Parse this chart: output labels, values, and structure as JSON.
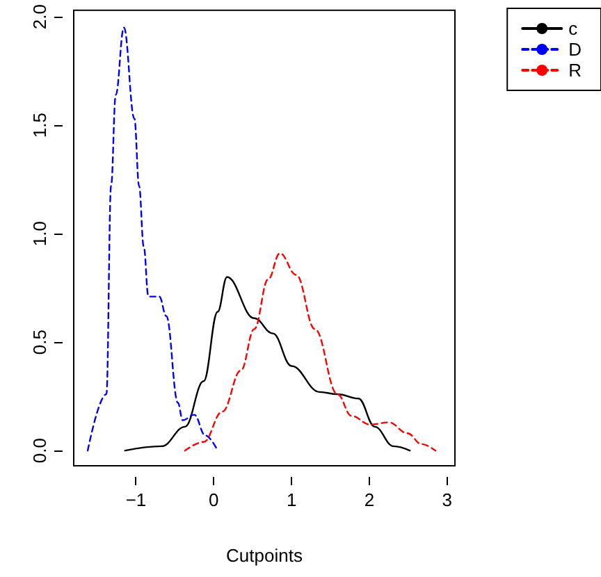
{
  "chart_data": {
    "type": "line",
    "xlabel": "Cutpoints",
    "xlim": [
      -1.8,
      3.1
    ],
    "ylim": [
      -0.07,
      2.03
    ],
    "xticks": [
      {
        "value": -1,
        "label": "−1"
      },
      0,
      1,
      2,
      3
    ],
    "yticks": [
      {
        "value": 0,
        "label": "0.0"
      },
      {
        "value": 0.5,
        "label": "0.5"
      },
      {
        "value": 1,
        "label": "1.0"
      },
      {
        "value": 1.5,
        "label": "1.5"
      },
      {
        "value": 2,
        "label": "2.0"
      }
    ],
    "grid": false,
    "legend": "top right",
    "marker": "none",
    "series": [
      {
        "name": "c",
        "color": "#000000",
        "line_style": "solid",
        "x": [
          -1.14,
          -0.67,
          -0.37,
          -0.13,
          0.05,
          0.17,
          0.52,
          0.76,
          1.0,
          1.36,
          1.59,
          1.86,
          2.07,
          2.31,
          2.52
        ],
        "values": [
          0,
          0.02,
          0.11,
          0.32,
          0.64,
          0.8,
          0.61,
          0.54,
          0.39,
          0.27,
          0.26,
          0.24,
          0.11,
          0.02,
          0
        ]
      },
      {
        "name": "D",
        "color": "#0000ff",
        "line_style": "dashed",
        "x": [
          -1.62,
          -1.38,
          -1.32,
          -1.26,
          -1.155,
          -1.02,
          -0.96,
          -0.9,
          -0.84,
          -0.7,
          -0.61,
          -0.46,
          -0.4,
          -0.25,
          -0.11,
          0.05
        ],
        "values": [
          0,
          0.26,
          1.22,
          1.64,
          1.95,
          1.53,
          1.22,
          0.94,
          0.71,
          0.71,
          0.62,
          0.22,
          0.14,
          0.165,
          0.07,
          0
        ]
      },
      {
        "name": "R",
        "color": "#ff0000",
        "line_style": "dashed",
        "x": [
          -0.37,
          -0.13,
          0.11,
          0.35,
          0.52,
          0.7,
          0.85,
          1.06,
          1.3,
          1.59,
          1.77,
          2.01,
          2.25,
          2.49,
          2.67,
          2.85
        ],
        "values": [
          0,
          0.04,
          0.18,
          0.37,
          0.56,
          0.79,
          0.91,
          0.81,
          0.56,
          0.26,
          0.16,
          0.12,
          0.13,
          0.08,
          0.03,
          0
        ]
      }
    ]
  }
}
